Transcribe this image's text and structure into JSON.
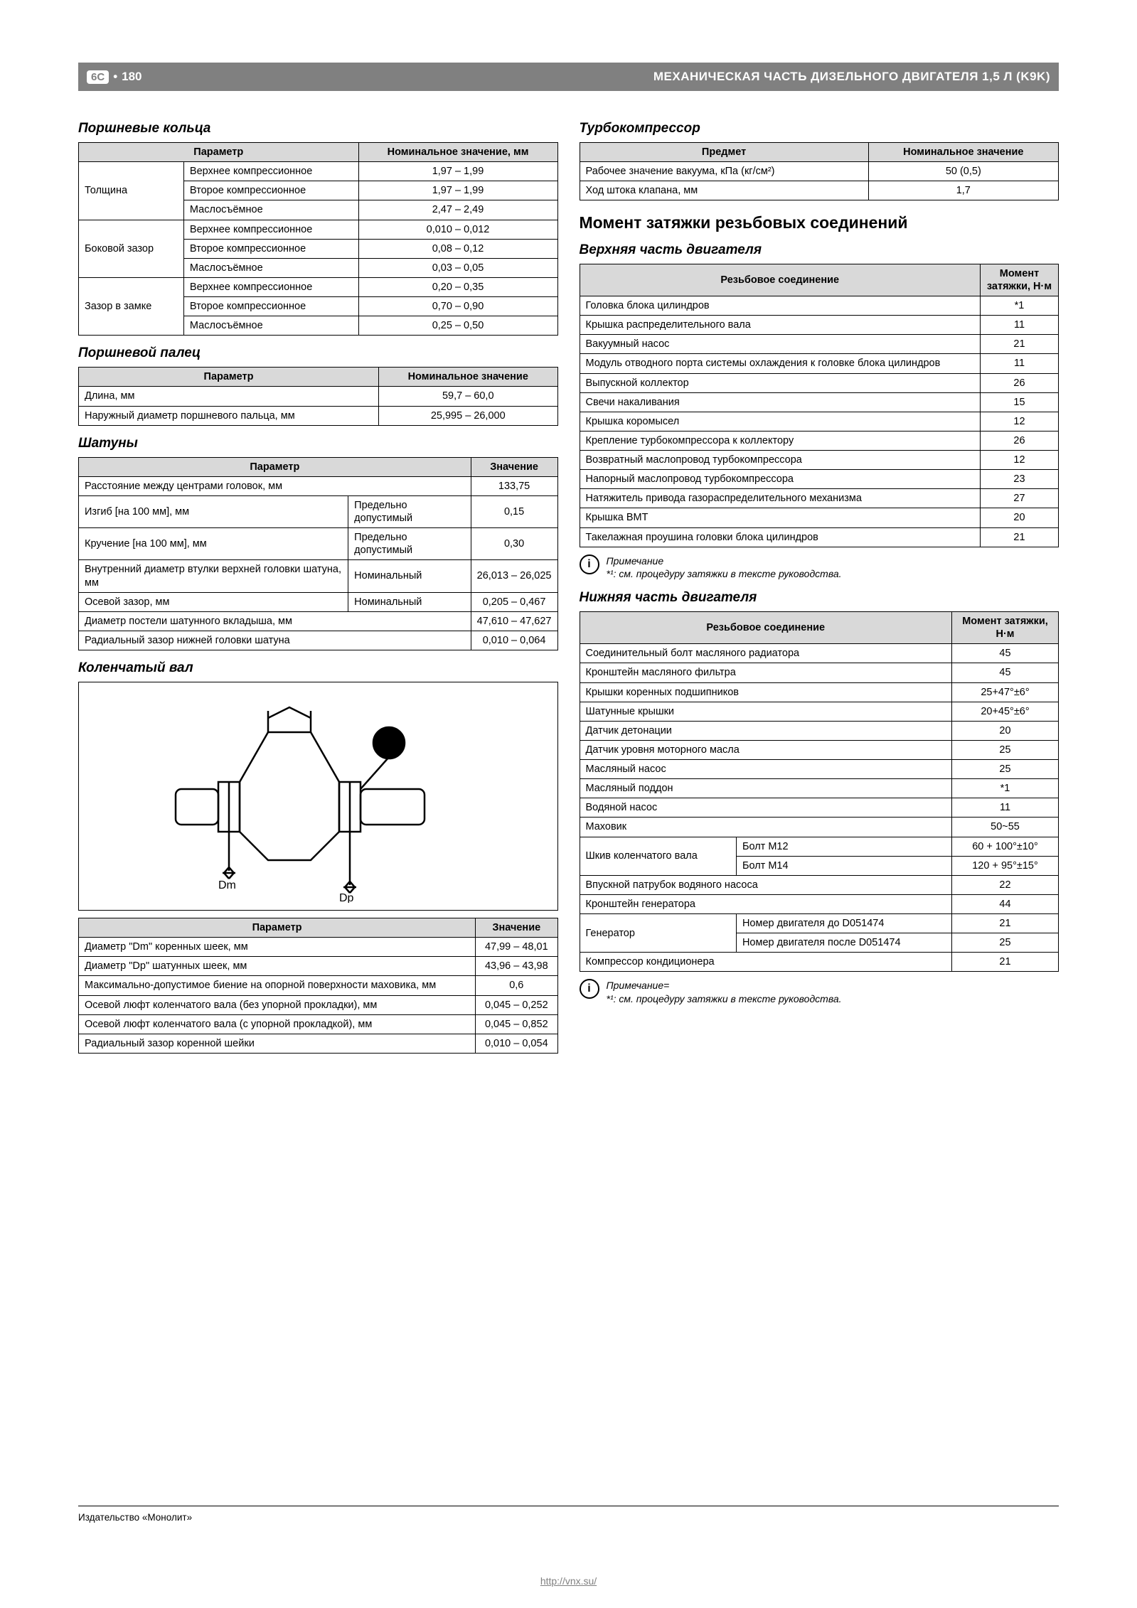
{
  "header": {
    "badge": "6C",
    "bullet": "•",
    "page_num": "180",
    "title": "МЕХАНИЧЕСКАЯ ЧАСТЬ ДИЗЕЛЬНОГО ДВИГАТЕЛЯ 1,5 Л (K9K)"
  },
  "left": {
    "rings": {
      "title": "Поршневые кольца",
      "h_param": "Параметр",
      "h_val": "Номинальное значение, мм",
      "groups": [
        {
          "label": "Толщина",
          "rows": [
            [
              "Верхнее компрессионное",
              "1,97 – 1,99"
            ],
            [
              "Второе компрессионное",
              "1,97 – 1,99"
            ],
            [
              "Маслосъёмное",
              "2,47 – 2,49"
            ]
          ]
        },
        {
          "label": "Боковой зазор",
          "rows": [
            [
              "Верхнее компрессионное",
              "0,010 – 0,012"
            ],
            [
              "Второе компрессионное",
              "0,08 – 0,12"
            ],
            [
              "Маслосъёмное",
              "0,03 – 0,05"
            ]
          ]
        },
        {
          "label": "Зазор в замке",
          "rows": [
            [
              "Верхнее компрессионное",
              "0,20 – 0,35"
            ],
            [
              "Второе компрессионное",
              "0,70 – 0,90"
            ],
            [
              "Маслосъёмное",
              "0,25 – 0,50"
            ]
          ]
        }
      ]
    },
    "pin": {
      "title": "Поршневой палец",
      "h_param": "Параметр",
      "h_val": "Номинальное значение",
      "rows": [
        [
          "Длина, мм",
          "59,7 – 60,0"
        ],
        [
          "Наружный диаметр поршневого пальца, мм",
          "25,995 – 26,000"
        ]
      ]
    },
    "rods": {
      "title": "Шатуны",
      "h_param": "Параметр",
      "h_val": "Значение",
      "rows": [
        {
          "c": [
            "Расстояние между центрами головок, мм",
            "",
            "133,75"
          ],
          "span": 2
        },
        {
          "c": [
            "Изгиб [на 100 мм], мм",
            "Предельно допустимый",
            "0,15"
          ]
        },
        {
          "c": [
            "Кручение [на 100 мм], мм",
            "Предельно допустимый",
            "0,30"
          ]
        },
        {
          "c": [
            "Внутренний диаметр втулки верхней головки шатуна, мм",
            "Номинальный",
            "26,013 – 26,025"
          ]
        },
        {
          "c": [
            "Осевой зазор, мм",
            "Номинальный",
            "0,205 – 0,467"
          ]
        },
        {
          "c": [
            "Диаметр постели шатунного вкладыша, мм",
            "",
            "47,610 – 47,627"
          ],
          "span": 2
        },
        {
          "c": [
            "Радиальный зазор нижней головки шатуна",
            "",
            "0,010 – 0,064"
          ],
          "span": 2
        }
      ]
    },
    "crank": {
      "title": "Коленчатый вал",
      "h_param": "Параметр",
      "h_val": "Значение",
      "diagram": {
        "dm": "Dm",
        "dp": "Dp"
      },
      "rows": [
        [
          "Диаметр \"Dm\" коренных шеек, мм",
          "47,99 – 48,01"
        ],
        [
          "Диаметр \"Dp\" шатунных шеек, мм",
          "43,96 – 43,98"
        ],
        [
          "Максимально-допустимое биение на опорной поверхности маховика, мм",
          "0,6"
        ],
        [
          "Осевой люфт коленчатого вала (без упорной прокладки), мм",
          "0,045 – 0,252"
        ],
        [
          "Осевой люфт коленчатого вала (с упорной прокладкой), мм",
          "0,045 – 0,852"
        ],
        [
          "Радиальный зазор коренной шейки",
          "0,010 – 0,054"
        ]
      ]
    }
  },
  "right": {
    "turbo": {
      "title": "Турбокомпрессор",
      "h_item": "Предмет",
      "h_val": "Номинальное значение",
      "rows": [
        [
          "Рабочее значение вакуума, кПа (кг/см²)",
          "50 (0,5)"
        ],
        [
          "Ход штока клапана, мм",
          "1,7"
        ]
      ]
    },
    "torque_title": "Момент затяжки резьбовых соединений",
    "upper": {
      "title": "Верхняя часть двигателя",
      "h_conn": "Резьбовое соединение",
      "h_val": "Момент затяжки, Н·м",
      "rows": [
        [
          "Головка блока цилиндров",
          "*1"
        ],
        [
          "Крышка распределительного вала",
          "11"
        ],
        [
          "Вакуумный насос",
          "21"
        ],
        [
          "Модуль отводного порта системы охлаждения к головке блока цилиндров",
          "11"
        ],
        [
          "Выпускной коллектор",
          "26"
        ],
        [
          "Свечи накаливания",
          "15"
        ],
        [
          "Крышка коромысел",
          "12"
        ],
        [
          "Крепление турбокомпрессора к коллектору",
          "26"
        ],
        [
          "Возвратный маслопровод турбокомпрессора",
          "12"
        ],
        [
          "Напорный маслопровод турбокомпрессора",
          "23"
        ],
        [
          "Натяжитель привода газораспределительного механизма",
          "27"
        ],
        [
          "Крышка ВМТ",
          "20"
        ],
        [
          "Такелажная проушина головки блока цилиндров",
          "21"
        ]
      ]
    },
    "note1": {
      "label": "Примечание",
      "text": "*¹: см. процедуру затяжки в тексте руководства."
    },
    "lower": {
      "title": "Нижняя часть двигателя",
      "h_conn": "Резьбовое соединение",
      "h_val": "Момент затяжки, Н·м",
      "simple_rows": [
        [
          "Соединительный болт масляного радиатора",
          "45"
        ],
        [
          "Кронштейн масляного фильтра",
          "45"
        ],
        [
          "Крышки коренных подшипников",
          "25+47°±6°"
        ],
        [
          "Шатунные крышки",
          "20+45°±6°"
        ],
        [
          "Датчик детонации",
          "20"
        ],
        [
          "Датчик уровня моторного масла",
          "25"
        ],
        [
          "Масляный насос",
          "25"
        ],
        [
          "Масляный поддон",
          "*1"
        ],
        [
          "Водяной насос",
          "11"
        ],
        [
          "Маховик",
          "50~55"
        ]
      ],
      "pulley": {
        "label": "Шкив коленчатого вала",
        "rows": [
          [
            "Болт М12",
            "60 + 100°±10°"
          ],
          [
            "Болт М14",
            "120 + 95°±15°"
          ]
        ]
      },
      "after_pulley": [
        [
          "Впускной патрубок водяного насоса",
          "22"
        ],
        [
          "Кронштейн генератора",
          "44"
        ]
      ],
      "gen": {
        "label": "Генератор",
        "rows": [
          [
            "Номер двигателя до D051474",
            "21"
          ],
          [
            "Номер двигателя после D051474",
            "25"
          ]
        ]
      },
      "last": [
        [
          "Компрессор кондиционера",
          "21"
        ]
      ]
    },
    "note2": {
      "label": "Примечание=",
      "text": "*¹: см. процедуру затяжки в тексте руководства."
    }
  },
  "footer": {
    "publisher": "Издательство «Монолит»",
    "url": "http://vnx.su/"
  }
}
